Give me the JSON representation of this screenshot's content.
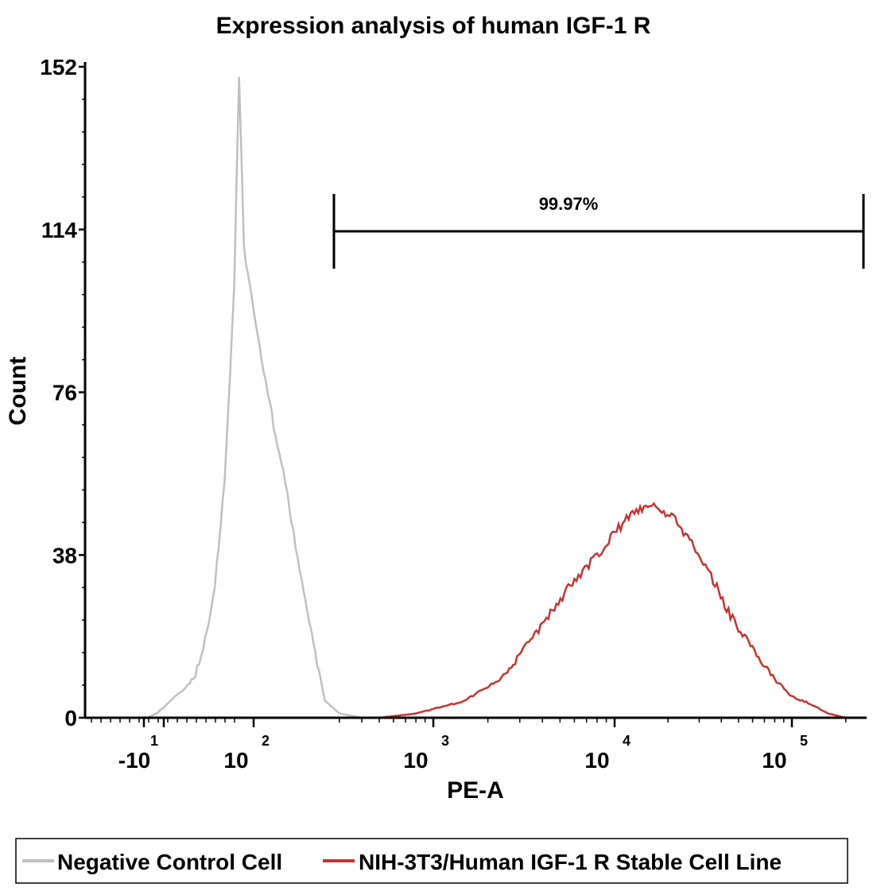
{
  "chart_data": {
    "type": "histogram",
    "title": "Expression analysis of human IGF-1 R",
    "xlabel": "PE-A",
    "ylabel": "Count",
    "x_scale": "biexponential",
    "x_ticks": [
      {
        "base": "-10",
        "exp": "1"
      },
      {
        "base": "10",
        "exp": "2"
      },
      {
        "base": "10",
        "exp": "3"
      },
      {
        "base": "10",
        "exp": "4"
      },
      {
        "base": "10",
        "exp": "5"
      }
    ],
    "y_ticks": [
      "0",
      "38",
      "76",
      "114",
      "152"
    ],
    "ylim": [
      0,
      152
    ],
    "gate": {
      "label": "99.97%",
      "x_range": [
        300,
        262144
      ]
    },
    "legend": {
      "placement": "bottom",
      "entries": [
        {
          "label": "Negative Control Cell",
          "color": "#c0c0c0"
        },
        {
          "label": "NIH-3T3/Human IGF-1 R Stable Cell Line",
          "color": "#c83232"
        }
      ]
    },
    "series": [
      {
        "name": "Negative Control Cell",
        "color": "#c0c0c0",
        "points": [
          [
            -20,
            0
          ],
          [
            -10,
            0
          ],
          [
            0,
            1
          ],
          [
            10,
            3
          ],
          [
            20,
            5
          ],
          [
            30,
            7
          ],
          [
            40,
            10
          ],
          [
            50,
            18
          ],
          [
            60,
            30
          ],
          [
            70,
            55
          ],
          [
            80,
            100
          ],
          [
            85,
            150
          ],
          [
            90,
            110
          ],
          [
            100,
            95
          ],
          [
            120,
            75
          ],
          [
            150,
            55
          ],
          [
            180,
            35
          ],
          [
            220,
            15
          ],
          [
            250,
            4
          ],
          [
            300,
            1
          ],
          [
            400,
            0
          ]
        ]
      },
      {
        "name": "NIH-3T3/Human IGF-1 R Stable Cell Line",
        "color": "#c83232",
        "points": [
          [
            500,
            0
          ],
          [
            800,
            1
          ],
          [
            1500,
            4
          ],
          [
            2500,
            10
          ],
          [
            4000,
            22
          ],
          [
            6000,
            32
          ],
          [
            8000,
            38
          ],
          [
            10000,
            43
          ],
          [
            12000,
            47
          ],
          [
            15000,
            49
          ],
          [
            18000,
            49
          ],
          [
            22000,
            46
          ],
          [
            28000,
            40
          ],
          [
            35000,
            33
          ],
          [
            45000,
            24
          ],
          [
            60000,
            16
          ],
          [
            80000,
            9
          ],
          [
            100000,
            5
          ],
          [
            130000,
            3
          ],
          [
            160000,
            1
          ],
          [
            200000,
            0
          ],
          [
            250000,
            0
          ]
        ]
      }
    ]
  }
}
